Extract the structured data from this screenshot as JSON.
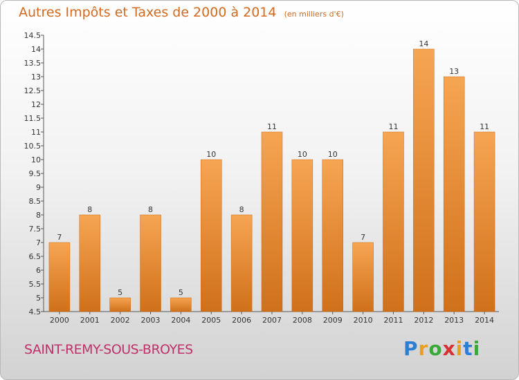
{
  "title": "Autres Impôts et Taxes de 2000 à 2014",
  "unit": "(en milliers d'€)",
  "commune": "SAINT-REMY-SOUS-BROYES",
  "logo": {
    "letters": [
      "P",
      "r",
      "o",
      "x",
      "i",
      "t",
      "i"
    ],
    "colors": [
      "#2a7fd4",
      "#e8a020",
      "#3aa83a",
      "#d83030",
      "#e8a020",
      "#2a7fd4",
      "#3aa83a"
    ]
  },
  "colors": {
    "bar_light": "#f6a553",
    "bar_dark": "#d0701a",
    "title": "#d2691e",
    "commune": "#c0306a"
  },
  "chart_data": {
    "type": "bar",
    "categories": [
      "2000",
      "2001",
      "2002",
      "2003",
      "2004",
      "2005",
      "2006",
      "2007",
      "2008",
      "2009",
      "2010",
      "2011",
      "2012",
      "2013",
      "2014"
    ],
    "values": [
      7,
      8,
      5,
      8,
      5,
      10,
      8,
      11,
      10,
      10,
      7,
      11,
      14,
      13,
      11
    ],
    "data_labels": [
      "7",
      "8",
      "5",
      "8",
      "5",
      "10",
      "8",
      "11",
      "10",
      "10",
      "7",
      "11",
      "14",
      "13",
      "11"
    ],
    "yticks": [
      "4.5",
      "5",
      "5.5",
      "6",
      "6.5",
      "7",
      "7.5",
      "8",
      "8.5",
      "9",
      "9.5",
      "10",
      "10.5",
      "11",
      "11.5",
      "12",
      "12.5",
      "13",
      "13.5",
      "14",
      "14.5"
    ],
    "ylim": [
      4.5,
      14.5
    ],
    "grid": false,
    "title": "Autres Impôts et Taxes de 2000 à 2014",
    "xlabel": "",
    "ylabel": ""
  }
}
